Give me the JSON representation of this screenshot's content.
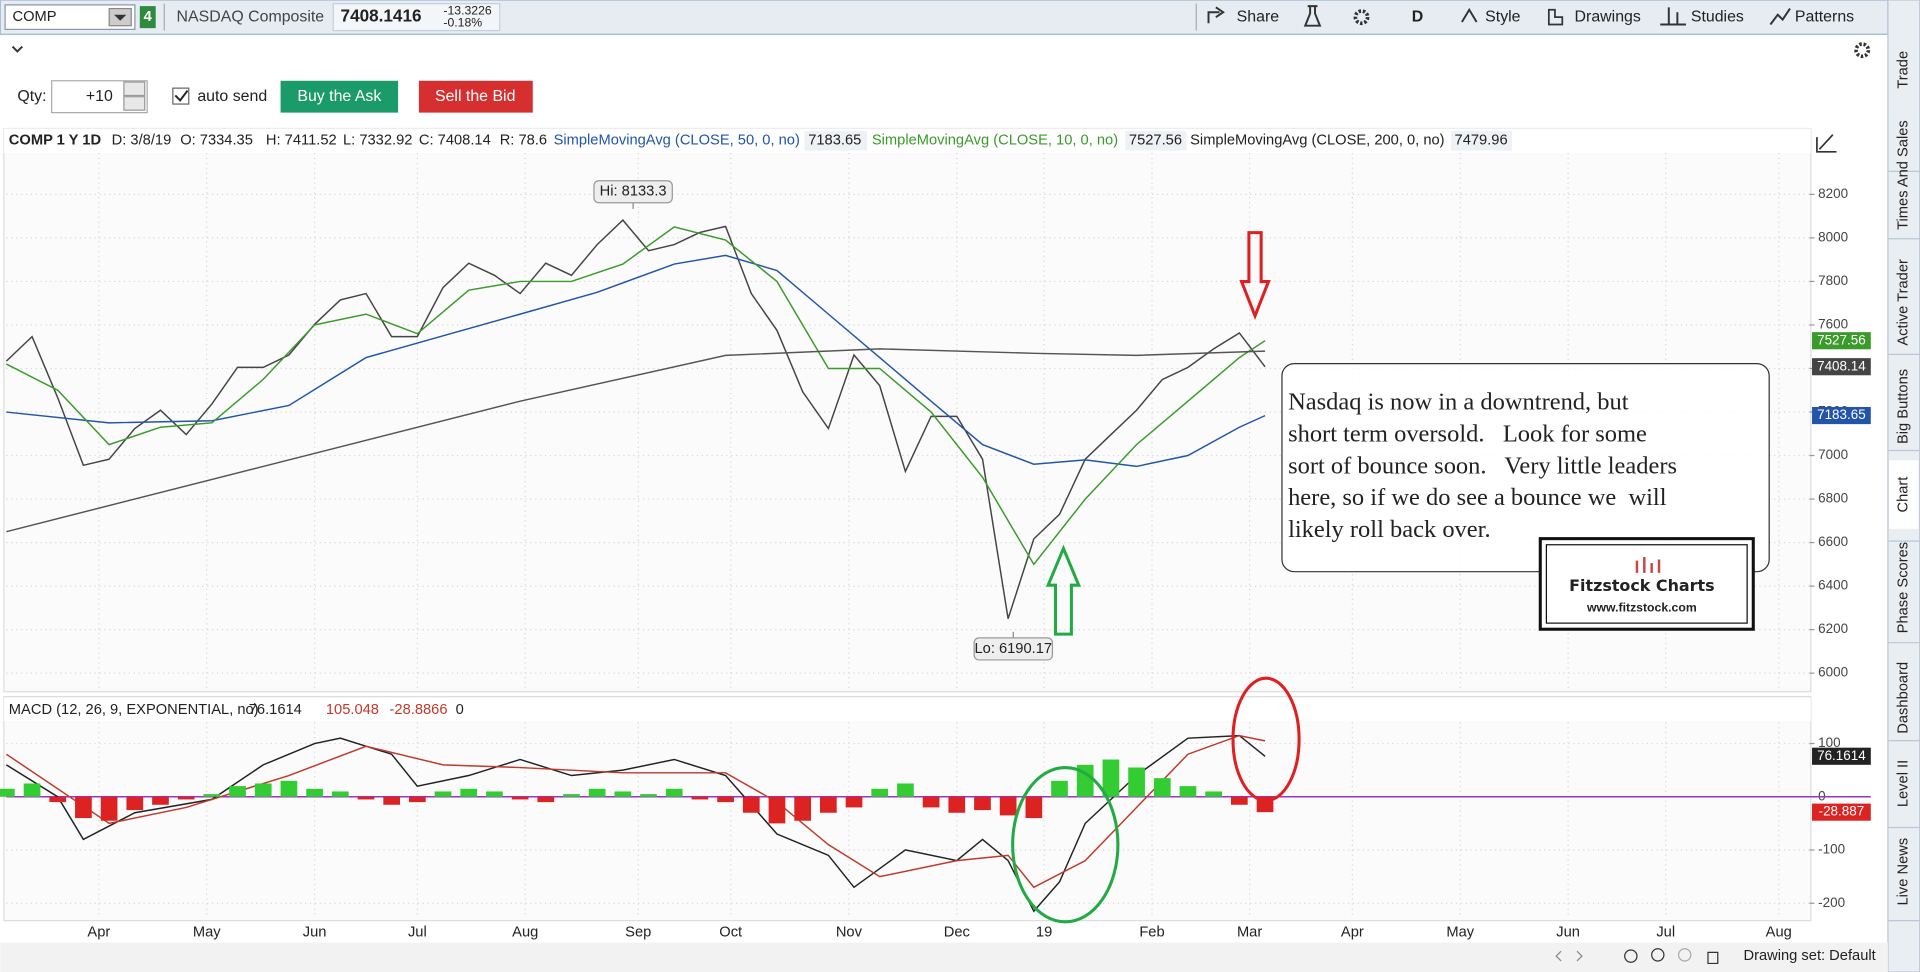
{
  "toolbar": {
    "symbol": "COMP",
    "badge": "4",
    "name": "NASDAQ Composite",
    "last": "7408.1416",
    "change": "-13.3226",
    "change_pct": "-0.18%",
    "buttons": [
      "Share",
      "D",
      "Style",
      "Drawings",
      "Studies",
      "Patterns"
    ]
  },
  "order": {
    "qty_label": "Qty:",
    "qty": "+10",
    "auto_send": "auto send",
    "buy": "Buy the Ask",
    "sell": "Sell the Bid"
  },
  "side_tabs": [
    "Trade",
    "Times And Sales",
    "Active Trader",
    "Big Buttons",
    "Chart",
    "Phase Scores",
    "Dashboard",
    "Level II",
    "Live News"
  ],
  "footer": "Drawing set: Default",
  "note": {
    "lines": [
      "Nasdaq is now in a downtrend, but",
      "short term oversold.   Look for some",
      "sort of bounce soon.   Very little leaders",
      "here, so if we do see a bounce we  will",
      "likely roll back over."
    ],
    "logo_title": "Fitzstock Charts",
    "logo_url": "www.fitzstock.com"
  },
  "chart_data": [
    {
      "type": "line",
      "title": "COMP 1 Y 1D",
      "header_items": [
        "D: 3/8/19",
        "O: 7334.35",
        "H: 7411.52",
        "L: 7332.92",
        "C: 7408.14",
        "R: 78.6"
      ],
      "xlim": [
        0,
        351
      ],
      "ylim": [
        5915,
        8390
      ],
      "yticks": [
        6000,
        6200,
        6400,
        6600,
        6800,
        7000,
        7200,
        7400,
        7600,
        7800,
        8000,
        8200
      ],
      "grid": true,
      "series": [
        {
          "color": "#444444",
          "tag": true,
          "x": [
            0,
            5,
            10,
            15,
            20,
            25,
            30,
            35,
            40,
            45,
            50,
            55,
            60,
            65,
            70,
            75,
            80,
            85,
            90,
            95,
            100,
            105,
            110,
            115,
            120,
            125,
            130,
            135,
            140,
            145,
            150,
            155,
            160,
            165,
            170,
            175,
            180,
            185,
            190,
            195,
            200,
            205,
            210,
            215,
            220,
            225,
            230,
            235,
            240,
            245
          ],
          "values": [
            7434,
            7546,
            7265,
            6955,
            6983,
            7124,
            7208,
            7096,
            7237,
            7405,
            7405,
            7462,
            7603,
            7715,
            7744,
            7546,
            7546,
            7772,
            7884,
            7828,
            7744,
            7884,
            7828,
            7969,
            8082,
            7941,
            7969,
            8025,
            8053,
            7744,
            7575,
            7293,
            7124,
            7462,
            7321,
            6927,
            7180,
            7180,
            6983,
            6250,
            6617,
            6730,
            6983,
            7096,
            7208,
            7349,
            7405,
            7490,
            7563,
            7408.14
          ]
        },
        {
          "name": "SimpleMovingAvg (CLOSE, 50, 0, no)",
          "color": "#2255aa",
          "tag": true,
          "x": [
            0,
            20,
            40,
            55,
            70,
            85,
            100,
            115,
            130,
            140,
            150,
            160,
            170,
            180,
            190,
            200,
            210,
            220,
            230,
            240,
            245
          ],
          "values": [
            7200,
            7150,
            7160,
            7230,
            7450,
            7550,
            7650,
            7750,
            7880,
            7920,
            7850,
            7650,
            7450,
            7250,
            7050,
            6960,
            6980,
            6950,
            7000,
            7130,
            7183.65
          ]
        },
        {
          "name": "SimpleMovingAvg (CLOSE, 10, 0, no)",
          "color": "#3a9a2a",
          "tag": true,
          "x": [
            0,
            10,
            20,
            30,
            40,
            50,
            60,
            70,
            80,
            90,
            100,
            110,
            120,
            130,
            140,
            150,
            160,
            170,
            180,
            190,
            200,
            210,
            220,
            230,
            240,
            245
          ],
          "values": [
            7420,
            7300,
            7050,
            7130,
            7150,
            7350,
            7600,
            7650,
            7560,
            7760,
            7800,
            7800,
            7880,
            8050,
            7990,
            7800,
            7400,
            7400,
            7200,
            6900,
            6500,
            6800,
            7050,
            7250,
            7450,
            7527.56
          ]
        },
        {
          "name": "SimpleMovingAvg (CLOSE, 200, 0, no)",
          "color": "#555555",
          "tag": false,
          "x": [
            0,
            50,
            100,
            140,
            170,
            200,
            220,
            245
          ],
          "values": [
            6650,
            6950,
            7250,
            7460,
            7490,
            7470,
            7460,
            7479.96
          ]
        }
      ],
      "annotations": [
        {
          "label": "Hi: 8133.3",
          "value": 8133.3,
          "x": 122
        },
        {
          "label": "Lo: 6190.17",
          "value": 6190.17,
          "x": 196
        }
      ]
    },
    {
      "type": "macd",
      "title": "MACD (12, 26, 9, EXPONENTIAL, no)",
      "xlim": [
        0,
        351
      ],
      "ylim": [
        -228,
        140
      ],
      "yticks": [
        -200,
        -100,
        0,
        100
      ],
      "grid": true,
      "zero_line": 0,
      "zero_color": "#9933cc",
      "xticks": [
        {
          "value": 18,
          "label": "Apr"
        },
        {
          "value": 39,
          "label": "May"
        },
        {
          "value": 60,
          "label": "Jun"
        },
        {
          "value": 80,
          "label": "Jul"
        },
        {
          "value": 101,
          "label": "Aug"
        },
        {
          "value": 123,
          "label": "Sep"
        },
        {
          "value": 141,
          "label": "Oct"
        },
        {
          "value": 164,
          "label": "Nov"
        },
        {
          "value": 185,
          "label": "Dec"
        },
        {
          "value": 202,
          "label": "19"
        },
        {
          "value": 223,
          "label": "Feb"
        },
        {
          "value": 242,
          "label": "Mar"
        },
        {
          "value": 262,
          "label": "Apr"
        },
        {
          "value": 283,
          "label": "May"
        },
        {
          "value": 304,
          "label": "Jun"
        },
        {
          "value": 323,
          "label": "Jul"
        },
        {
          "value": 345,
          "label": "Aug"
        }
      ],
      "series": [
        {
          "color": "#222222",
          "tag": true,
          "x": [
            0,
            10,
            15,
            25,
            40,
            50,
            60,
            65,
            75,
            80,
            90,
            100,
            110,
            120,
            130,
            140,
            150,
            160,
            165,
            175,
            185,
            190,
            195,
            200,
            205,
            210,
            220,
            230,
            240,
            245
          ],
          "values": [
            60,
            0,
            -80,
            -30,
            -5,
            60,
            100,
            110,
            80,
            20,
            40,
            70,
            40,
            50,
            70,
            40,
            -70,
            -110,
            -170,
            -100,
            -120,
            -80,
            -120,
            -215,
            -160,
            -50,
            40,
            110,
            115,
            76.1614
          ]
        },
        {
          "color": "#c0392b",
          "tag": false,
          "x": [
            0,
            20,
            35,
            55,
            70,
            85,
            100,
            120,
            140,
            150,
            160,
            170,
            185,
            195,
            200,
            210,
            220,
            230,
            240,
            245
          ],
          "values": [
            80,
            -50,
            -20,
            40,
            95,
            60,
            55,
            45,
            45,
            -10,
            -90,
            -150,
            -120,
            -110,
            -170,
            -120,
            -20,
            80,
            115,
            105.048
          ]
        },
        {
          "color": "#dd2222",
          "positive_color": "#33cc33",
          "tag": true,
          "bars": true,
          "x": [
            0,
            5,
            10,
            15,
            20,
            25,
            30,
            35,
            40,
            45,
            50,
            55,
            60,
            65,
            70,
            75,
            80,
            85,
            90,
            95,
            100,
            105,
            110,
            115,
            120,
            125,
            130,
            135,
            140,
            145,
            150,
            155,
            160,
            165,
            170,
            175,
            180,
            185,
            190,
            195,
            200,
            205,
            210,
            215,
            220,
            225,
            230,
            235,
            240,
            245
          ],
          "values": [
            15,
            25,
            -10,
            -40,
            -45,
            -25,
            -15,
            -5,
            5,
            20,
            25,
            30,
            15,
            10,
            -5,
            -15,
            -10,
            10,
            15,
            10,
            -5,
            -10,
            5,
            15,
            10,
            5,
            15,
            -5,
            -10,
            -30,
            -50,
            -45,
            -30,
            -20,
            15,
            25,
            -20,
            -30,
            -25,
            -35,
            -40,
            30,
            60,
            70,
            55,
            35,
            20,
            10,
            -15,
            -28.8866
          ],
          "value_labels": [
            null,
            null,
            null,
            null,
            null,
            null,
            null,
            null,
            null,
            null,
            null,
            null,
            null,
            null,
            null,
            null,
            null,
            null,
            null,
            null,
            null,
            null,
            null,
            null,
            null,
            null,
            null,
            null,
            null,
            null,
            null,
            null,
            null,
            null,
            null,
            null,
            null,
            null,
            null,
            null,
            null,
            null,
            null,
            null,
            null,
            null,
            null,
            null,
            null,
            "-28.887"
          ]
        }
      ]
    }
  ]
}
